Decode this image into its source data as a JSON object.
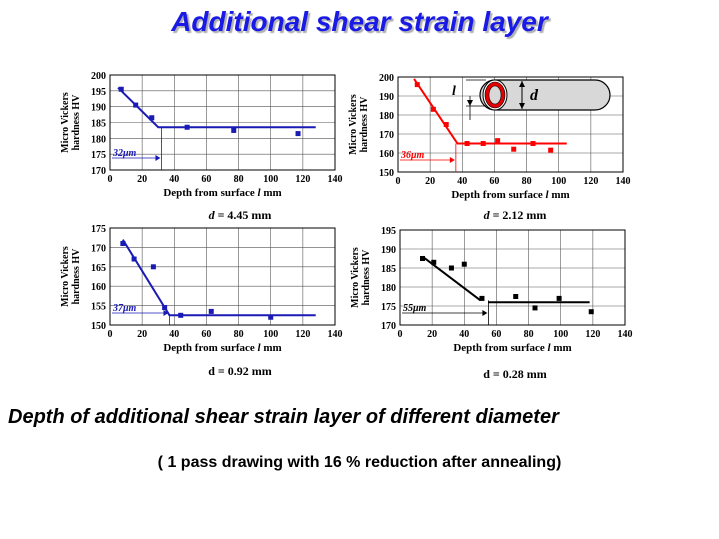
{
  "slide": {
    "title": "Additional shear strain layer",
    "footer_main": "Depth of additional shear strain layer of different diameter",
    "footer_sub": "( 1 pass drawing with 16 % reduction after annealing)"
  },
  "colors": {
    "blue": "#1a1ab4",
    "red": "#ff0000",
    "black": "#000000",
    "title": "#1a1ae6"
  },
  "chart_data": [
    {
      "type": "scatter",
      "caption_var": "d",
      "caption_value": " = 4.45 mm",
      "ylabel": [
        "Micro Vickers",
        "hardness HV"
      ],
      "xlabel": "Depth from surface ",
      "xlabel_var": "l",
      "xlabel_unit": " mm",
      "xlim": [
        0,
        140
      ],
      "ylim": [
        170,
        200
      ],
      "xticks": [
        0,
        20,
        40,
        60,
        80,
        100,
        120,
        140
      ],
      "yticks": [
        170,
        175,
        180,
        185,
        190,
        195,
        200
      ],
      "points": [
        [
          7,
          195.5
        ],
        [
          16,
          190.5
        ],
        [
          26,
          186.5
        ],
        [
          48,
          183.5
        ],
        [
          77,
          182.5
        ],
        [
          117,
          181.5
        ]
      ],
      "trend": [
        [
          5,
          196
        ],
        [
          30,
          183.5
        ],
        [
          128,
          183.5
        ]
      ],
      "annotation": "32μm",
      "annotation_depth": 32,
      "color": "#1a1ab4"
    },
    {
      "type": "scatter",
      "caption_var": "d",
      "caption_value": " = 2.12 mm",
      "ylabel": [
        "Micro Vickers",
        "hardness HV"
      ],
      "xlabel": "Depth from surface ",
      "xlabel_var": "l",
      "xlabel_unit": " mm",
      "xlim": [
        0,
        140
      ],
      "ylim": [
        150,
        200
      ],
      "xticks": [
        0,
        20,
        40,
        60,
        80,
        100,
        120,
        140
      ],
      "yticks": [
        150,
        160,
        170,
        180,
        190,
        200
      ],
      "points": [
        [
          12,
          196
        ],
        [
          22,
          183
        ],
        [
          30,
          175
        ],
        [
          43,
          165
        ],
        [
          53,
          165
        ],
        [
          62,
          166.5
        ],
        [
          72,
          162
        ],
        [
          84,
          165
        ],
        [
          95,
          161.5
        ]
      ],
      "trend": [
        [
          10,
          199
        ],
        [
          37,
          165
        ],
        [
          105,
          165
        ]
      ],
      "annotation": "36μm",
      "annotation_depth": 36,
      "color": "#ff0000",
      "inset": {
        "l_label": "l",
        "d_label": "d"
      }
    },
    {
      "type": "scatter",
      "caption_var": "",
      "caption_value": "d = 0.92 mm",
      "ylabel": [
        "Micro Vickers",
        "hardness HV"
      ],
      "xlabel": "Depth from surface ",
      "xlabel_var": "l",
      "xlabel_unit": " mm",
      "xlim": [
        0,
        140
      ],
      "ylim": [
        150,
        175
      ],
      "xticks": [
        0,
        20,
        40,
        60,
        80,
        100,
        120,
        140
      ],
      "yticks": [
        150,
        155,
        160,
        165,
        170,
        175
      ],
      "points": [
        [
          8,
          171
        ],
        [
          15,
          167
        ],
        [
          27,
          165
        ],
        [
          34,
          154.5
        ],
        [
          44,
          152.5
        ],
        [
          63,
          153.5
        ],
        [
          100,
          152
        ]
      ],
      "trend": [
        [
          8,
          172
        ],
        [
          37,
          152.5
        ],
        [
          128,
          152.5
        ]
      ],
      "annotation": "37μm",
      "annotation_depth": 37,
      "color": "#1a1ab4"
    },
    {
      "type": "scatter",
      "caption_var": "",
      "caption_value": "d = 0.28 mm",
      "ylabel": [
        "Micro Vickers",
        "hardness HV"
      ],
      "xlabel": "Depth from surface ",
      "xlabel_var": "l",
      "xlabel_unit": " mm",
      "xlim": [
        0,
        140
      ],
      "ylim": [
        170,
        195
      ],
      "xticks": [
        0,
        20,
        40,
        60,
        80,
        100,
        120,
        140
      ],
      "yticks": [
        170,
        175,
        180,
        185,
        190,
        195
      ],
      "points": [
        [
          14,
          187.5
        ],
        [
          21,
          186.5
        ],
        [
          32,
          185
        ],
        [
          40,
          186
        ],
        [
          51,
          177
        ],
        [
          72,
          177.5
        ],
        [
          84,
          174.5
        ],
        [
          99,
          177
        ],
        [
          119,
          173.5
        ]
      ],
      "trend": [
        [
          14,
          188
        ],
        [
          50,
          176.5
        ]
      ],
      "trend2": [
        [
          55,
          176
        ],
        [
          118,
          176
        ]
      ],
      "annotation": "55μm",
      "annotation_depth": 55,
      "color": "#000000"
    }
  ]
}
